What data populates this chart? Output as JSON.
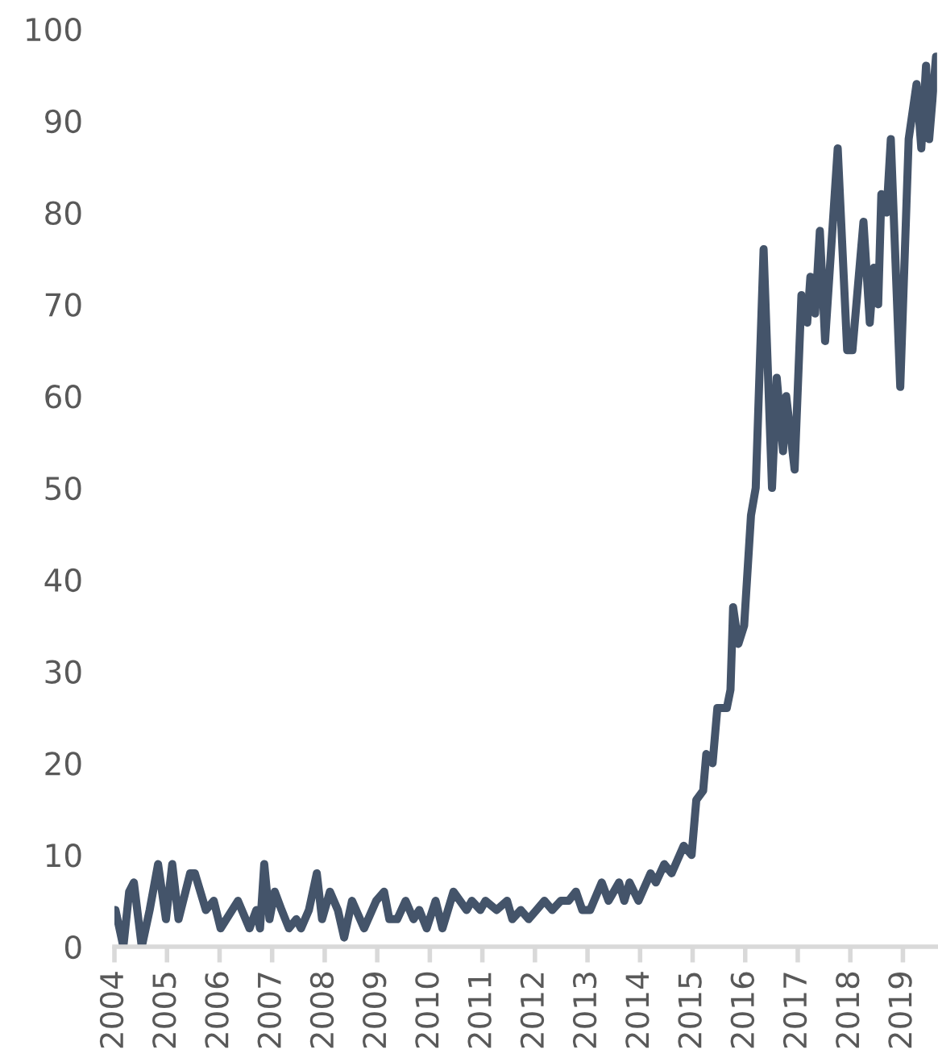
{
  "chart_data": {
    "type": "line",
    "x": [
      2004.02,
      2004.17,
      2004.28,
      2004.37,
      2004.52,
      2004.67,
      2004.83,
      2004.98,
      2005.1,
      2005.22,
      2005.44,
      2005.53,
      2005.74,
      2005.89,
      2006.02,
      2006.35,
      2006.57,
      2006.7,
      2006.77,
      2006.85,
      2006.95,
      2007.05,
      2007.18,
      2007.32,
      2007.46,
      2007.55,
      2007.7,
      2007.85,
      2007.95,
      2008.1,
      2008.25,
      2008.37,
      2008.52,
      2008.75,
      2008.98,
      2009.13,
      2009.23,
      2009.38,
      2009.54,
      2009.69,
      2009.8,
      2009.94,
      2010.11,
      2010.24,
      2010.45,
      2010.7,
      2010.8,
      2010.96,
      2011.06,
      2011.27,
      2011.47,
      2011.57,
      2011.73,
      2011.88,
      2012.03,
      2012.18,
      2012.33,
      2012.49,
      2012.64,
      2012.78,
      2012.9,
      2013.05,
      2013.27,
      2013.4,
      2013.6,
      2013.7,
      2013.8,
      2013.97,
      2014.2,
      2014.3,
      2014.46,
      2014.6,
      2014.83,
      2014.98,
      2015.07,
      2015.2,
      2015.26,
      2015.38,
      2015.47,
      2015.65,
      2015.72,
      2015.77,
      2015.87,
      2015.98,
      2016.11,
      2016.2,
      2016.35,
      2016.51,
      2016.6,
      2016.72,
      2016.78,
      2016.94,
      2017.07,
      2017.18,
      2017.24,
      2017.33,
      2017.42,
      2017.52,
      2017.76,
      2017.94,
      2018.04,
      2018.25,
      2018.37,
      2018.45,
      2018.53,
      2018.59,
      2018.69,
      2018.77,
      2018.95,
      2019.11,
      2019.26,
      2019.35,
      2019.44,
      2019.5,
      2019.63
    ],
    "series": [
      {
        "color": "#44546a",
        "values": [
          4,
          0,
          6,
          7,
          0,
          4,
          9,
          3,
          9,
          3,
          8,
          8,
          4,
          5,
          2,
          5,
          2,
          4,
          2,
          9,
          3,
          6,
          4,
          2,
          3,
          2,
          4,
          8,
          3,
          6,
          4,
          1,
          5,
          2,
          5,
          6,
          3,
          3,
          5,
          3,
          4,
          2,
          5,
          2,
          6,
          4,
          5,
          4,
          5,
          4,
          5,
          3,
          4,
          3,
          4,
          5,
          4,
          5,
          5,
          6,
          4,
          4,
          7,
          5,
          7,
          5,
          7,
          5,
          8,
          7,
          9,
          8,
          11,
          10,
          16,
          17,
          21,
          20,
          26,
          26,
          28,
          37,
          33,
          35,
          47,
          50,
          76,
          50,
          62,
          54,
          60,
          52,
          71,
          68,
          73,
          69,
          78,
          66,
          87,
          65,
          65,
          79,
          68,
          74,
          70,
          82,
          80,
          88,
          61,
          88,
          94,
          87,
          96,
          88,
          97
        ]
      }
    ],
    "xlim": [
      2004,
      2019.65
    ],
    "xticks": [
      2004,
      2005,
      2006,
      2007,
      2008,
      2009,
      2010,
      2011,
      2012,
      2013,
      2014,
      2015,
      2016,
      2017,
      2018,
      2019
    ],
    "ylim": [
      0,
      100
    ],
    "yticks": [
      0,
      10,
      20,
      30,
      40,
      50,
      60,
      70,
      80,
      90,
      100
    ],
    "grid": false,
    "legend": false,
    "marker": "none",
    "line_style": "solid"
  }
}
